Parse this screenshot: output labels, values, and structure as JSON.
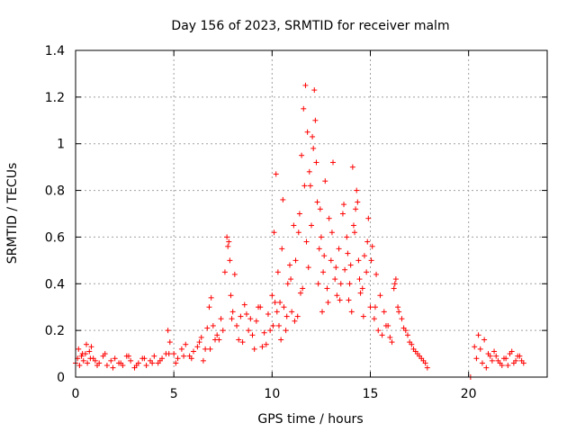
{
  "chart_data": {
    "type": "scatter",
    "title": "Day 156 of 2023, SRMTID for receiver malm",
    "xlabel": "GPS time / hours",
    "ylabel": "SRMTID / TECUs",
    "xlim": [
      0,
      24
    ],
    "ylim": [
      0,
      1.4
    ],
    "grid": true,
    "marker": "+",
    "color": "#ff0000",
    "xticks": [
      0,
      5,
      10,
      15,
      20
    ],
    "xtick_labels": [
      "0",
      "5",
      "10",
      "15",
      "20"
    ],
    "yticks": [
      0,
      0.2,
      0.4,
      0.6,
      0.8,
      1,
      1.2,
      1.4
    ],
    "ytick_labels": [
      "0",
      "0.2",
      "0.4",
      "0.6",
      "0.8",
      "1",
      "1.2",
      "1.4"
    ],
    "series": [
      {
        "name": "SRMTID",
        "x": [
          0.0,
          0.1,
          0.2,
          0.3,
          0.4,
          0.5,
          0.6,
          0.7,
          0.8,
          0.9,
          1.0,
          1.2,
          1.4,
          1.6,
          1.8,
          2.0,
          2.2,
          2.4,
          2.6,
          2.8,
          3.0,
          3.2,
          3.4,
          3.6,
          3.8,
          4.0,
          4.2,
          4.4,
          4.6,
          4.7,
          4.8,
          5.0,
          5.2,
          5.4,
          5.6,
          5.8,
          6.0,
          6.2,
          6.4,
          6.6,
          6.8,
          6.9,
          7.0,
          7.2,
          7.4,
          7.6,
          7.7,
          7.8,
          7.9,
          8.0,
          8.2,
          8.4,
          8.6,
          8.8,
          9.0,
          9.2,
          9.4,
          9.6,
          9.8,
          10.0,
          10.1,
          10.2,
          10.3,
          10.4,
          10.5,
          10.6,
          10.8,
          11.0,
          11.2,
          11.4,
          11.5,
          11.6,
          11.7,
          11.8,
          11.9,
          12.0,
          12.1,
          12.2,
          12.3,
          12.4,
          12.5,
          12.6,
          12.8,
          13.0,
          13.2,
          13.4,
          13.6,
          13.8,
          14.0,
          14.1,
          14.2,
          14.3,
          14.4,
          14.6,
          14.8,
          15.0,
          15.2,
          15.4,
          15.6,
          15.8,
          16.0,
          16.2,
          16.3,
          16.4,
          16.6,
          16.8,
          17.0,
          17.2,
          17.4,
          17.6,
          17.8,
          17.9,
          20.1,
          20.4,
          20.6,
          20.8,
          21.0,
          21.2,
          21.4,
          21.6,
          21.8,
          22.0,
          22.2,
          22.4,
          22.6,
          22.8,
          0.15,
          0.35,
          0.55,
          0.75,
          1.1,
          1.5,
          1.9,
          2.3,
          2.7,
          3.1,
          3.5,
          3.9,
          4.3,
          4.75,
          5.1,
          5.5,
          5.9,
          6.3,
          6.7,
          7.1,
          7.5,
          7.75,
          8.1,
          8.5,
          8.9,
          9.3,
          9.7,
          10.05,
          10.25,
          10.45,
          10.7,
          10.9,
          11.1,
          11.3,
          11.55,
          11.65,
          11.75,
          11.85,
          12.05,
          12.15,
          12.25,
          12.45,
          12.7,
          12.9,
          13.1,
          13.3,
          13.5,
          13.7,
          13.9,
          14.05,
          14.15,
          14.35,
          14.5,
          14.7,
          14.9,
          15.1,
          15.3,
          15.5,
          15.7,
          15.9,
          16.1,
          16.25,
          16.45,
          16.7,
          16.9,
          17.1,
          17.3,
          17.5,
          17.7,
          20.3,
          20.5,
          20.7,
          20.9,
          21.1,
          21.3,
          21.5,
          21.7,
          21.9,
          22.1,
          22.3,
          22.5,
          22.7,
          10.15,
          10.35,
          10.55,
          10.75,
          10.95,
          11.15,
          11.35,
          11.45,
          11.95,
          12.35,
          12.55,
          12.65,
          12.85,
          13.05,
          13.25,
          13.45,
          13.65,
          13.85,
          13.95,
          14.25,
          14.45,
          14.65,
          14.85,
          15.05,
          15.25,
          7.85,
          7.95,
          8.3,
          8.7,
          9.1,
          9.5,
          9.9,
          6.5,
          6.85,
          7.3
        ],
        "y": [
          0.06,
          0.08,
          0.05,
          0.09,
          0.07,
          0.1,
          0.06,
          0.11,
          0.13,
          0.08,
          0.07,
          0.06,
          0.09,
          0.05,
          0.07,
          0.08,
          0.06,
          0.05,
          0.09,
          0.07,
          0.04,
          0.06,
          0.08,
          0.05,
          0.07,
          0.09,
          0.06,
          0.08,
          0.1,
          0.2,
          0.15,
          0.1,
          0.08,
          0.12,
          0.14,
          0.09,
          0.11,
          0.13,
          0.17,
          0.12,
          0.3,
          0.34,
          0.22,
          0.18,
          0.25,
          0.45,
          0.6,
          0.58,
          0.35,
          0.28,
          0.22,
          0.26,
          0.31,
          0.2,
          0.18,
          0.24,
          0.3,
          0.19,
          0.27,
          0.35,
          0.62,
          0.87,
          0.45,
          0.32,
          0.55,
          0.3,
          0.4,
          0.28,
          0.5,
          0.7,
          0.95,
          1.15,
          1.25,
          1.05,
          0.88,
          0.65,
          0.98,
          1.1,
          0.75,
          0.55,
          0.6,
          0.45,
          0.38,
          0.5,
          0.42,
          0.55,
          0.7,
          0.6,
          0.48,
          0.9,
          0.62,
          0.8,
          0.5,
          0.38,
          0.45,
          0.3,
          0.25,
          0.2,
          0.18,
          0.22,
          0.17,
          0.38,
          0.42,
          0.3,
          0.25,
          0.2,
          0.15,
          0.12,
          0.1,
          0.08,
          0.06,
          0.04,
          0.0,
          0.08,
          0.12,
          0.16,
          0.1,
          0.07,
          0.09,
          0.06,
          0.08,
          0.05,
          0.11,
          0.07,
          0.09,
          0.06,
          0.12,
          0.1,
          0.14,
          0.08,
          0.05,
          0.1,
          0.04,
          0.06,
          0.09,
          0.05,
          0.08,
          0.06,
          0.07,
          0.1,
          0.06,
          0.09,
          0.08,
          0.15,
          0.21,
          0.16,
          0.2,
          0.56,
          0.44,
          0.15,
          0.25,
          0.3,
          0.14,
          0.22,
          0.28,
          0.16,
          0.2,
          0.48,
          0.65,
          0.26,
          0.38,
          0.82,
          0.58,
          0.47,
          1.03,
          1.23,
          0.92,
          0.72,
          0.84,
          0.68,
          0.92,
          0.35,
          0.4,
          0.46,
          0.33,
          0.28,
          0.65,
          0.75,
          0.36,
          0.52,
          0.68,
          0.56,
          0.44,
          0.35,
          0.28,
          0.22,
          0.15,
          0.4,
          0.28,
          0.21,
          0.18,
          0.14,
          0.11,
          0.09,
          0.07,
          0.13,
          0.18,
          0.06,
          0.04,
          0.09,
          0.11,
          0.07,
          0.05,
          0.08,
          0.1,
          0.06,
          0.09,
          0.07,
          0.32,
          0.22,
          0.76,
          0.26,
          0.42,
          0.24,
          0.62,
          0.36,
          0.82,
          0.4,
          0.28,
          0.52,
          0.32,
          0.62,
          0.47,
          0.33,
          0.74,
          0.53,
          0.4,
          0.72,
          0.42,
          0.26,
          0.58,
          0.5,
          0.3,
          0.5,
          0.25,
          0.16,
          0.27,
          0.12,
          0.13,
          0.2,
          0.07,
          0.12,
          0.16
        ]
      }
    ]
  }
}
